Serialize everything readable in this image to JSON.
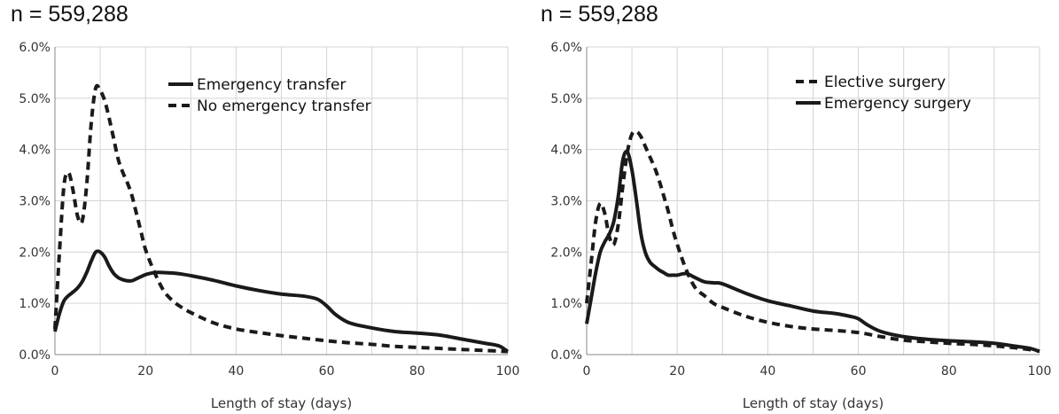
{
  "chart_data": [
    {
      "type": "line",
      "title": "n = 559,288",
      "xlabel": "Length of stay (days)",
      "ylabel": "",
      "xlim": [
        0,
        100
      ],
      "ylim": [
        0,
        6
      ],
      "x_ticks": [
        "0",
        "20",
        "40",
        "60",
        "80",
        "100"
      ],
      "y_ticks": [
        "0.0%",
        "1.0%",
        "2.0%",
        "3.0%",
        "4.0%",
        "5.0%",
        "6.0%"
      ],
      "grid": true,
      "legend_position": "top-right",
      "series": [
        {
          "name": "Emergency transfer",
          "style": "solid",
          "color": "#1a1a1a",
          "x": [
            0,
            1,
            2,
            3,
            4,
            5,
            6,
            7,
            8,
            9,
            10,
            11,
            12,
            13,
            14,
            15,
            16,
            17,
            18,
            19,
            20,
            22,
            24,
            26,
            28,
            30,
            35,
            40,
            45,
            50,
            55,
            58,
            60,
            62,
            65,
            70,
            75,
            80,
            85,
            90,
            95,
            98,
            100
          ],
          "y": [
            0.45,
            0.8,
            1.05,
            1.15,
            1.22,
            1.3,
            1.42,
            1.6,
            1.82,
            2.0,
            2.0,
            1.9,
            1.72,
            1.58,
            1.5,
            1.46,
            1.44,
            1.44,
            1.48,
            1.52,
            1.56,
            1.6,
            1.6,
            1.59,
            1.57,
            1.54,
            1.45,
            1.34,
            1.25,
            1.18,
            1.14,
            1.08,
            0.95,
            0.78,
            0.62,
            0.52,
            0.45,
            0.42,
            0.38,
            0.3,
            0.22,
            0.17,
            0.06
          ]
        },
        {
          "name": "No emergency transfer",
          "style": "dashed",
          "color": "#1a1a1a",
          "x": [
            0,
            1,
            2,
            3,
            4,
            5,
            6,
            7,
            8,
            9,
            10,
            11,
            12,
            13,
            14,
            15,
            16,
            17,
            18,
            19,
            20,
            22,
            24,
            26,
            28,
            30,
            35,
            40,
            45,
            50,
            55,
            60,
            65,
            70,
            75,
            80,
            85,
            90,
            95,
            100
          ],
          "y": [
            0.5,
            2.0,
            3.3,
            3.55,
            3.2,
            2.7,
            2.6,
            3.3,
            4.5,
            5.2,
            5.15,
            4.95,
            4.6,
            4.2,
            3.8,
            3.55,
            3.35,
            3.1,
            2.75,
            2.4,
            2.05,
            1.6,
            1.25,
            1.05,
            0.92,
            0.82,
            0.62,
            0.5,
            0.43,
            0.37,
            0.32,
            0.27,
            0.23,
            0.2,
            0.16,
            0.14,
            0.12,
            0.1,
            0.08,
            0.06
          ]
        }
      ]
    },
    {
      "type": "line",
      "title": "n = 559,288",
      "xlabel": "Length of stay (days)",
      "ylabel": "",
      "xlim": [
        0,
        100
      ],
      "ylim": [
        0,
        6
      ],
      "x_ticks": [
        "0",
        "20",
        "40",
        "60",
        "80",
        "100"
      ],
      "y_ticks": [
        "0.0%",
        "1.0%",
        "2.0%",
        "3.0%",
        "4.0%",
        "5.0%",
        "6.0%"
      ],
      "grid": true,
      "legend_position": "top-right",
      "series": [
        {
          "name": "Elective surgery",
          "style": "dashed",
          "color": "#1a1a1a",
          "x": [
            0,
            1,
            2,
            3,
            4,
            5,
            6,
            7,
            8,
            9,
            10,
            11,
            12,
            13,
            14,
            15,
            16,
            17,
            18,
            19,
            20,
            22,
            24,
            26,
            28,
            30,
            35,
            40,
            45,
            50,
            55,
            60,
            65,
            70,
            75,
            80,
            85,
            90,
            95,
            100
          ],
          "y": [
            1.0,
            1.8,
            2.6,
            2.95,
            2.75,
            2.3,
            2.15,
            2.55,
            3.3,
            3.95,
            4.3,
            4.35,
            4.25,
            4.05,
            3.85,
            3.65,
            3.4,
            3.1,
            2.8,
            2.45,
            2.15,
            1.65,
            1.3,
            1.15,
            1.0,
            0.92,
            0.75,
            0.63,
            0.55,
            0.5,
            0.47,
            0.43,
            0.35,
            0.28,
            0.25,
            0.22,
            0.2,
            0.17,
            0.13,
            0.07
          ]
        },
        {
          "name": "Emergency surgery",
          "style": "solid",
          "color": "#1a1a1a",
          "x": [
            0,
            1,
            2,
            3,
            4,
            5,
            6,
            7,
            8,
            9,
            10,
            11,
            12,
            13,
            14,
            15,
            16,
            17,
            18,
            19,
            20,
            22,
            24,
            26,
            28,
            30,
            35,
            40,
            45,
            50,
            55,
            58,
            60,
            62,
            65,
            70,
            75,
            80,
            85,
            90,
            95,
            98,
            100
          ],
          "y": [
            0.6,
            1.1,
            1.6,
            2.0,
            2.2,
            2.35,
            2.6,
            3.1,
            3.8,
            3.95,
            3.6,
            3.0,
            2.35,
            1.98,
            1.8,
            1.72,
            1.65,
            1.6,
            1.55,
            1.55,
            1.55,
            1.58,
            1.5,
            1.42,
            1.4,
            1.38,
            1.2,
            1.05,
            0.95,
            0.85,
            0.8,
            0.75,
            0.7,
            0.58,
            0.45,
            0.35,
            0.3,
            0.27,
            0.25,
            0.22,
            0.16,
            0.12,
            0.06
          ]
        }
      ]
    }
  ]
}
